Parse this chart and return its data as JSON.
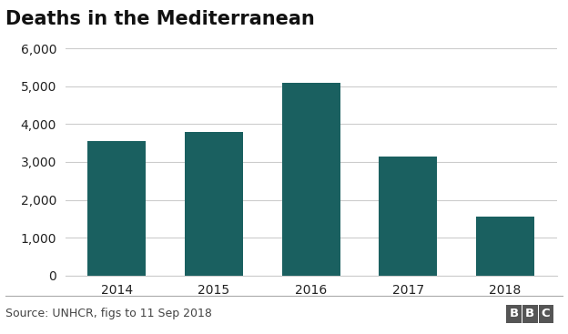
{
  "title": "Deaths in the Mediterranean",
  "categories": [
    "2014",
    "2015",
    "2016",
    "2017",
    "2018"
  ],
  "values": [
    3560,
    3800,
    5100,
    3140,
    1550
  ],
  "bar_color": "#1a6060",
  "background_color": "#ffffff",
  "ylim": [
    0,
    6000
  ],
  "yticks": [
    0,
    1000,
    2000,
    3000,
    4000,
    5000,
    6000
  ],
  "source_text": "Source: UNHCR, figs to 11 Sep 2018",
  "bbc_text": "BBC",
  "title_fontsize": 15,
  "tick_fontsize": 10,
  "source_fontsize": 9,
  "grid_color": "#cccccc",
  "footer_line_color": "#aaaaaa",
  "bbc_box_color": "#555555",
  "text_color": "#222222",
  "source_color": "#444444"
}
